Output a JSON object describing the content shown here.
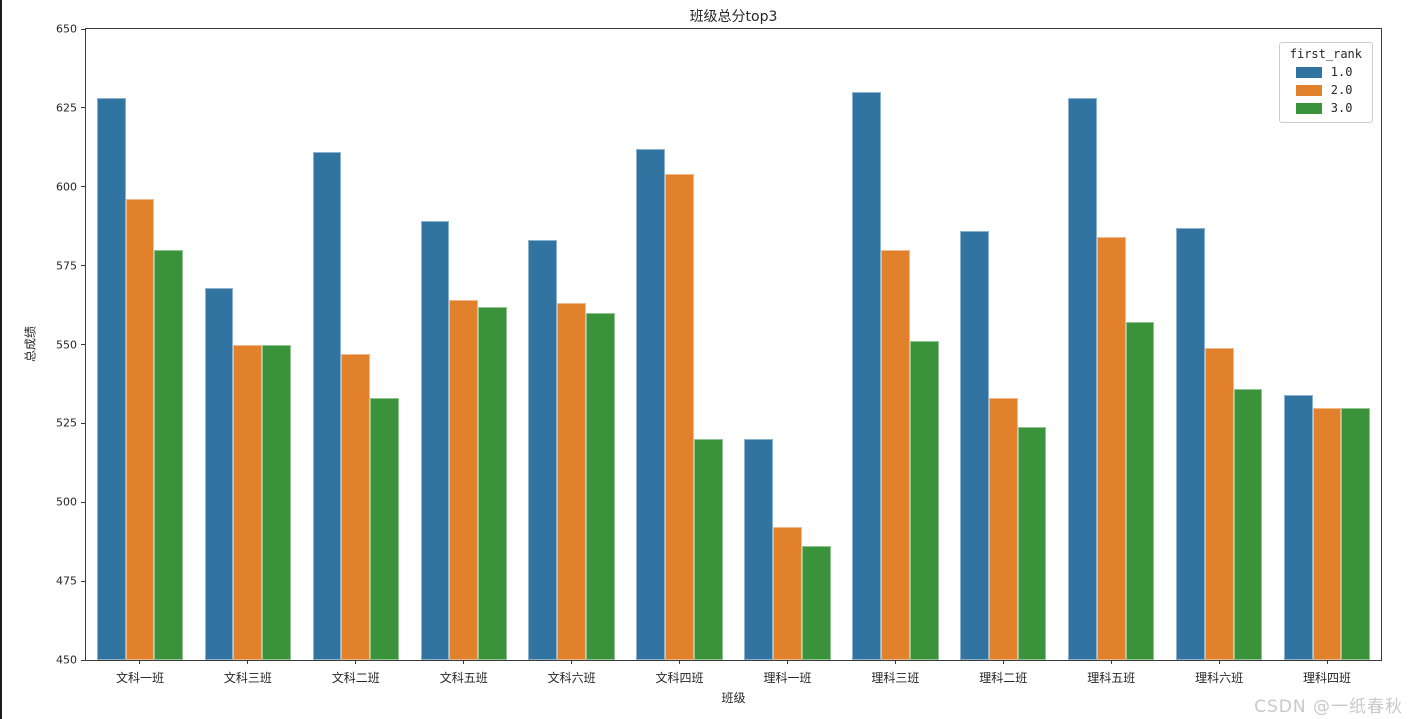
{
  "figure": {
    "title": "班级总分top3",
    "x_axis_title": "班级",
    "y_axis_title": "总成绩",
    "watermark": "CSDN @一纸春秋"
  },
  "legend": {
    "title": "first_rank",
    "entries": [
      {
        "label": "1.0",
        "color": "#3274a1"
      },
      {
        "label": "2.0",
        "color": "#e1812c"
      },
      {
        "label": "3.0",
        "color": "#3a923a"
      }
    ]
  },
  "chart_data": {
    "type": "bar",
    "title": "班级总分top3",
    "xlabel": "班级",
    "ylabel": "总成绩",
    "ylim": [
      450,
      650
    ],
    "ytick_step": 25,
    "grid": false,
    "legend_position": "upper right",
    "legend_title": "first_rank",
    "categories": [
      "文科一班",
      "文科三班",
      "文科二班",
      "文科五班",
      "文科六班",
      "文科四班",
      "理科一班",
      "理科三班",
      "理科二班",
      "理科五班",
      "理科六班",
      "理科四班"
    ],
    "series": [
      {
        "name": "1.0",
        "color": "#3274a1",
        "values": [
          628,
          568,
          611,
          589,
          583,
          612,
          520,
          630,
          586,
          628,
          587,
          534
        ]
      },
      {
        "name": "2.0",
        "color": "#e1812c",
        "values": [
          596,
          550,
          547,
          564,
          563,
          604,
          492,
          580,
          533,
          584,
          549,
          530
        ]
      },
      {
        "name": "3.0",
        "color": "#3a923a",
        "values": [
          580,
          550,
          533,
          562,
          560,
          520,
          486,
          551,
          524,
          557,
          536,
          530
        ]
      }
    ]
  }
}
